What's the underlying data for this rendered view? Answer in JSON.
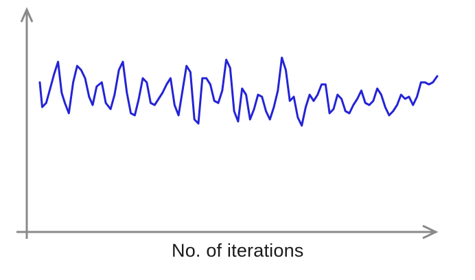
{
  "chart_data": {
    "type": "line",
    "title": "",
    "xlabel": "No. of iterations",
    "ylabel": "",
    "grid": false,
    "legend": "none",
    "x_ticks": [],
    "y_ticks": [],
    "xlim": [
      0,
      100
    ],
    "ylim": [
      0,
      10
    ],
    "series": [
      {
        "color": "#2323d6",
        "x": [
          0,
          0.6,
          1.6,
          2.6,
          3.6,
          4.6,
          5.5,
          6.3,
          7.3,
          8.4,
          9.4,
          10.4,
          11.4,
          12.4,
          13.3,
          14.3,
          15.6,
          16.6,
          17.8,
          18.8,
          19.9,
          20.9,
          21.9,
          22.9,
          23.9,
          24.9,
          25.9,
          26.9,
          27.9,
          28.9,
          29.9,
          30.9,
          31.9,
          32.9,
          33.9,
          34.9,
          35.9,
          36.9,
          37.9,
          38.9,
          39.9,
          40.9,
          41.9,
          42.9,
          43.9,
          44.9,
          45.9,
          46.9,
          47.9,
          48.9,
          49.9,
          50.9,
          51.9,
          52.9,
          53.9,
          54.9,
          55.9,
          56.9,
          57.9,
          58.9,
          59.9,
          60.9,
          61.9,
          62.9,
          63.9,
          64.9,
          65.9,
          66.9,
          67.9,
          68.9,
          69.9,
          70.9,
          71.9,
          72.9,
          73.9,
          74.9,
          75.9,
          76.9,
          77.9,
          78.9,
          79.9,
          80.9,
          81.9,
          82.9,
          83.9,
          84.9,
          85.9,
          86.9,
          87.9,
          88.9,
          89.9,
          90.9,
          91.9,
          92.9,
          93.9,
          94.9,
          95.9,
          96.9,
          97.9,
          98.9,
          100
        ],
        "values": [
          7.0,
          5.8,
          6.0,
          6.7,
          7.4,
          8.0,
          6.5,
          6.0,
          5.5,
          7.0,
          7.8,
          7.6,
          7.2,
          6.3,
          5.9,
          6.8,
          7.0,
          6.0,
          5.7,
          6.4,
          7.6,
          8.0,
          6.5,
          5.5,
          5.4,
          6.2,
          7.2,
          7.0,
          6.0,
          5.9,
          6.2,
          6.5,
          6.9,
          7.2,
          5.9,
          5.4,
          6.6,
          7.8,
          7.5,
          5.2,
          5.0,
          7.2,
          7.2,
          6.9,
          6.1,
          6.0,
          6.6,
          8.1,
          7.7,
          5.6,
          5.1,
          6.7,
          6.4,
          5.2,
          5.7,
          6.4,
          6.3,
          5.6,
          5.2,
          5.8,
          6.6,
          8.2,
          7.6,
          6.1,
          6.3,
          5.3,
          4.9,
          5.8,
          6.4,
          6.1,
          6.4,
          6.9,
          6.9,
          5.5,
          5.7,
          6.4,
          6.2,
          5.6,
          5.5,
          5.9,
          6.2,
          6.6,
          6.0,
          5.9,
          6.1,
          6.7,
          6.4,
          5.8,
          5.4,
          5.6,
          5.9,
          6.4,
          6.2,
          6.3,
          5.9,
          6.3,
          7.0,
          7.0,
          6.9,
          7.0,
          7.3
        ]
      }
    ]
  }
}
